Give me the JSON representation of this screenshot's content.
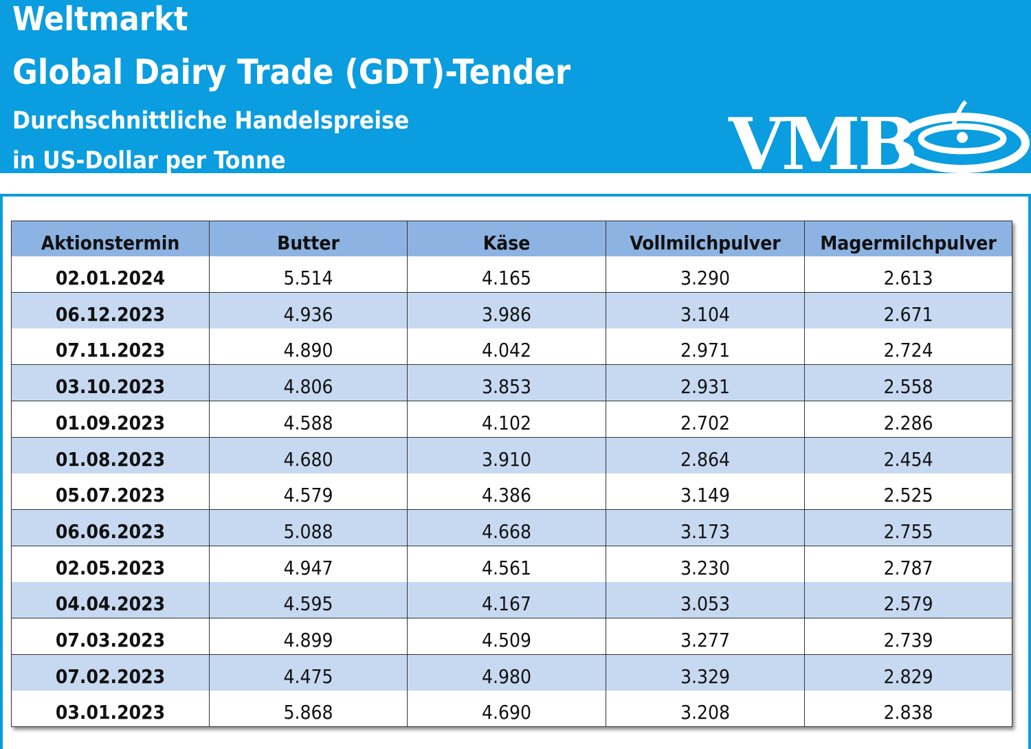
{
  "header": {
    "title": "Weltmarkt",
    "subtitle": "Global Dairy Trade (GDT)-Tender",
    "line3": "Durchschnittliche Handelspreise",
    "line4": "in US-Dollar per Tonne",
    "logo": "VMB"
  },
  "table": {
    "columns": [
      "Aktionstermin",
      "Butter",
      "Käse",
      "Vollmilchpulver",
      "Magermilchpulver"
    ],
    "rows": [
      [
        "02.01.2024",
        "5.514",
        "4.165",
        "3.290",
        "2.613"
      ],
      [
        "06.12.2023",
        "4.936",
        "3.986",
        "3.104",
        "2.671"
      ],
      [
        "07.11.2023",
        "4.890",
        "4.042",
        "2.971",
        "2.724"
      ],
      [
        "03.10.2023",
        "4.806",
        "3.853",
        "2.931",
        "2.558"
      ],
      [
        "01.09.2023",
        "4.588",
        "4.102",
        "2.702",
        "2.286"
      ],
      [
        "01.08.2023",
        "4.680",
        "3.910",
        "2.864",
        "2.454"
      ],
      [
        "05.07.2023",
        "4.579",
        "4.386",
        "3.149",
        "2.525"
      ],
      [
        "06.06.2023",
        "5.088",
        "4.668",
        "3.173",
        "2.755"
      ],
      [
        "02.05.2023",
        "4.947",
        "4.561",
        "3.230",
        "2.787"
      ],
      [
        "04.04.2023",
        "4.595",
        "4.167",
        "3.053",
        "2.579"
      ],
      [
        "07.03.2023",
        "4.899",
        "4.509",
        "3.277",
        "2.739"
      ],
      [
        "07.02.2023",
        "4.475",
        "4.980",
        "3.329",
        "2.829"
      ],
      [
        "03.01.2023",
        "5.868",
        "4.690",
        "3.208",
        "2.838"
      ]
    ]
  }
}
